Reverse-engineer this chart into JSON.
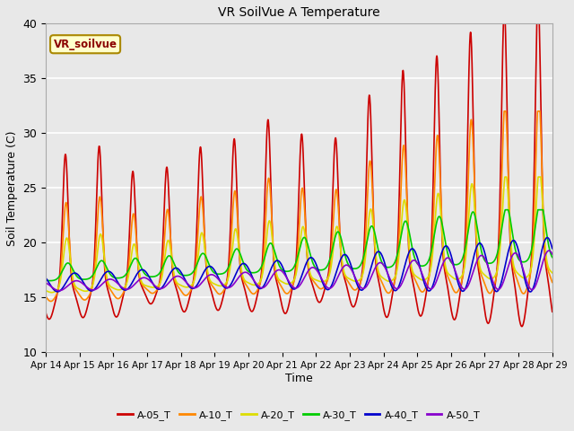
{
  "title": "VR SoilVue A Temperature",
  "xlabel": "Time",
  "ylabel": "Soil Temperature (C)",
  "ylim": [
    10,
    40
  ],
  "xlim": [
    0,
    15
  ],
  "plot_bg_color": "#e8e8e8",
  "legend_label": "VR_soilvue",
  "series": {
    "A-05_T": {
      "color": "#cc0000",
      "linewidth": 1.2
    },
    "A-10_T": {
      "color": "#ff8800",
      "linewidth": 1.2
    },
    "A-20_T": {
      "color": "#dddd00",
      "linewidth": 1.2
    },
    "A-30_T": {
      "color": "#00cc00",
      "linewidth": 1.2
    },
    "A-40_T": {
      "color": "#0000cc",
      "linewidth": 1.2
    },
    "A-50_T": {
      "color": "#8800cc",
      "linewidth": 1.2
    }
  },
  "xtick_labels": [
    "Apr 14",
    "Apr 15",
    "Apr 16",
    "Apr 17",
    "Apr 18",
    "Apr 19",
    "Apr 20",
    "Apr 21",
    "Apr 22",
    "Apr 23",
    "Apr 24",
    "Apr 25",
    "Apr 26",
    "Apr 27",
    "Apr 28",
    "Apr 29"
  ],
  "ytick_labels": [
    10,
    15,
    20,
    25,
    30,
    35,
    40
  ]
}
